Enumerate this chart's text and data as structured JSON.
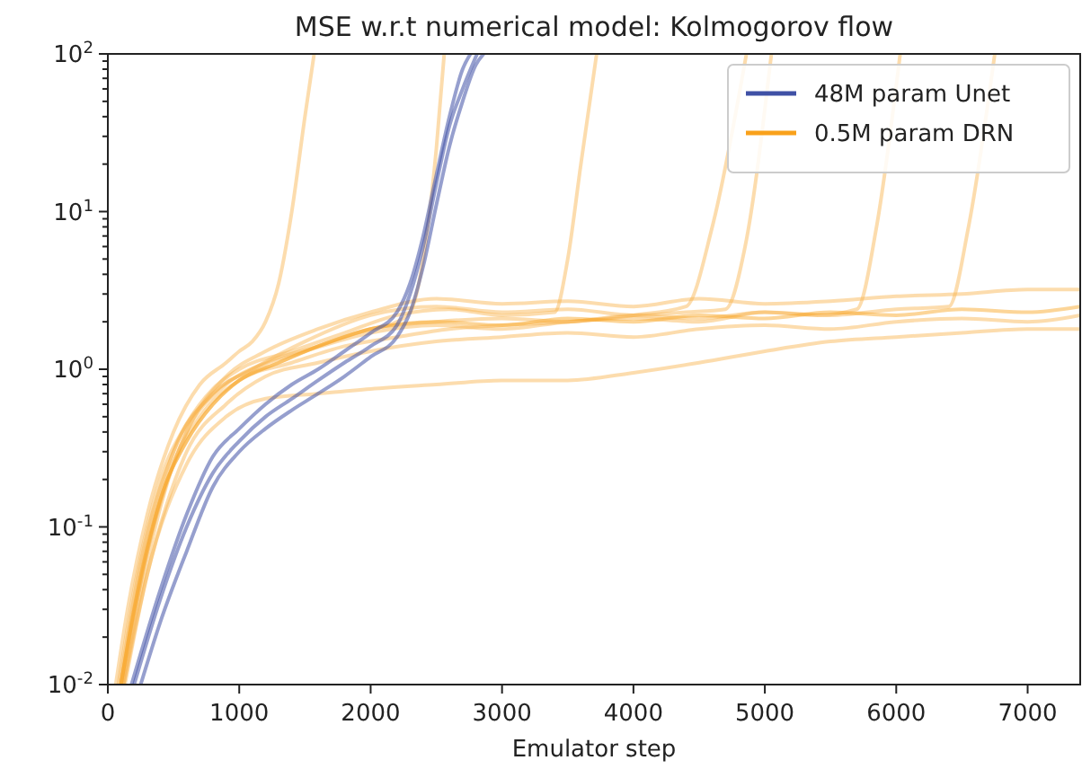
{
  "chart_data": {
    "type": "line",
    "title": "MSE w.r.t numerical model: Kolmogorov flow",
    "xlabel": "Emulator step",
    "log": "y",
    "legend": "top right",
    "grid": false,
    "marker": "none",
    "line_style": "solid",
    "xlim": [
      0,
      7400
    ],
    "xticks": [
      0,
      1000,
      2000,
      3000,
      4000,
      5000,
      6000,
      7000
    ],
    "ylim": [
      0.01,
      100
    ],
    "yticks": [
      {
        "value": 0.01,
        "label": "10$^{-2}$"
      },
      {
        "value": 0.02,
        "label": null
      },
      {
        "value": 0.03,
        "label": null
      },
      {
        "value": 0.04,
        "label": null
      },
      {
        "value": 0.05,
        "label": null
      },
      {
        "value": 0.06,
        "label": null
      },
      {
        "value": 0.07,
        "label": null
      },
      {
        "value": 0.08,
        "label": null
      },
      {
        "value": 0.09,
        "label": null
      },
      {
        "value": 0.1,
        "label": "10$^{-1}$"
      },
      {
        "value": 0.2,
        "label": null
      },
      {
        "value": 0.3,
        "label": null
      },
      {
        "value": 0.4,
        "label": null
      },
      {
        "value": 0.5,
        "label": null
      },
      {
        "value": 0.6,
        "label": null
      },
      {
        "value": 0.7,
        "label": null
      },
      {
        "value": 0.8,
        "label": null
      },
      {
        "value": 0.9,
        "label": null
      },
      {
        "value": 1,
        "label": "10$^{0}$"
      },
      {
        "value": 2,
        "label": null
      },
      {
        "value": 3,
        "label": null
      },
      {
        "value": 4,
        "label": null
      },
      {
        "value": 5,
        "label": null
      },
      {
        "value": 6,
        "label": null
      },
      {
        "value": 7,
        "label": null
      },
      {
        "value": 8,
        "label": null
      },
      {
        "value": 9,
        "label": null
      },
      {
        "value": 10,
        "label": "10$^{1}$"
      },
      {
        "value": 20,
        "label": null
      },
      {
        "value": 30,
        "label": null
      },
      {
        "value": 40,
        "label": null
      },
      {
        "value": 50,
        "label": null
      },
      {
        "value": 60,
        "label": null
      },
      {
        "value": 70,
        "label": null
      },
      {
        "value": 80,
        "label": null
      },
      {
        "value": 90,
        "label": null
      },
      {
        "value": 100,
        "label": "10$^{2}$"
      }
    ],
    "series": [
      {
        "color": "#f9b24a",
        "x": [
          60,
          150,
          300,
          500,
          700,
          900,
          1000,
          1100,
          1200,
          1300,
          1400,
          1500,
          1570
        ],
        "values": [
          0.01,
          0.03,
          0.12,
          0.4,
          0.8,
          1.1,
          1.3,
          1.5,
          2,
          3.5,
          10,
          40,
          100
        ]
      },
      {
        "color": "#f9b24a",
        "x": [
          100,
          200,
          400,
          600,
          800,
          1000,
          1300,
          1600,
          2000,
          2200,
          2300,
          2400,
          2500,
          2560
        ],
        "values": [
          0.01,
          0.03,
          0.15,
          0.35,
          0.6,
          0.85,
          1.1,
          1.4,
          1.8,
          2,
          2.3,
          5,
          25,
          100
        ]
      },
      {
        "color": "#f9b24a",
        "x": [
          80,
          200,
          400,
          600,
          800,
          1000,
          1400,
          1800,
          2200,
          2600,
          3000,
          3400,
          3500,
          3600,
          3720
        ],
        "values": [
          0.01,
          0.04,
          0.2,
          0.45,
          0.75,
          1,
          1.3,
          1.7,
          2.2,
          2.4,
          2.2,
          2.3,
          5,
          20,
          100
        ]
      },
      {
        "color": "#f9b24a",
        "x": [
          120,
          300,
          500,
          700,
          1000,
          1400,
          1800,
          2200,
          2600,
          3000,
          3500,
          4000,
          4400,
          4600,
          4860
        ],
        "values": [
          0.01,
          0.06,
          0.25,
          0.5,
          0.85,
          1.1,
          1.4,
          1.6,
          1.8,
          1.9,
          2,
          2.2,
          2.5,
          8,
          100
        ]
      },
      {
        "color": "#f9b24a",
        "x": [
          100,
          300,
          500,
          800,
          1100,
          1500,
          2000,
          2500,
          3000,
          3500,
          4000,
          4400,
          4700,
          4850,
          5050
        ],
        "values": [
          0.01,
          0.08,
          0.3,
          0.7,
          1,
          1.5,
          2.2,
          2.5,
          2.3,
          2.4,
          2.2,
          2.3,
          2.4,
          6,
          100
        ]
      },
      {
        "color": "#f9b24a",
        "x": [
          90,
          250,
          500,
          800,
          1100,
          1500,
          2000,
          2500,
          3000,
          3500,
          4000,
          4500,
          5000,
          5400,
          5700,
          5850,
          6030
        ],
        "values": [
          0.01,
          0.06,
          0.3,
          0.7,
          1,
          1.3,
          1.7,
          1.9,
          1.8,
          2,
          2.1,
          2,
          2.3,
          2.2,
          2.4,
          8,
          100
        ]
      },
      {
        "color": "#f9b24a",
        "x": [
          110,
          300,
          600,
          900,
          1200,
          1600,
          2000,
          2500,
          3000,
          3500,
          4000,
          4500,
          5000,
          5500,
          6000,
          6400,
          6550,
          6750
        ],
        "values": [
          0.01,
          0.07,
          0.4,
          0.8,
          1.1,
          1.4,
          1.8,
          2,
          2.1,
          2,
          2.2,
          2.1,
          2.3,
          2.2,
          2.4,
          2.5,
          8,
          100
        ]
      },
      {
        "color": "#f9b24a",
        "x": [
          130,
          300,
          600,
          900,
          1200,
          1600,
          2000,
          2500,
          3000,
          3500,
          4000,
          4500,
          5000,
          5500,
          6000,
          6500,
          7000,
          7400
        ],
        "values": [
          0.01,
          0.05,
          0.25,
          0.5,
          0.65,
          0.7,
          0.75,
          0.8,
          0.85,
          0.85,
          0.95,
          1.1,
          1.3,
          1.5,
          1.6,
          1.7,
          1.8,
          1.8
        ]
      },
      {
        "color": "#f9b24a",
        "x": [
          100,
          300,
          600,
          900,
          1200,
          1600,
          2000,
          2500,
          3000,
          3500,
          4000,
          4500,
          5000,
          5500,
          6000,
          6500,
          7000,
          7400
        ],
        "values": [
          0.01,
          0.07,
          0.4,
          0.9,
          1.3,
          1.8,
          2.3,
          2.8,
          2.6,
          2.7,
          2.5,
          2.8,
          2.6,
          2.7,
          2.9,
          3,
          3.2,
          3.2
        ]
      },
      {
        "color": "#f9b24a",
        "x": [
          120,
          300,
          600,
          900,
          1200,
          1600,
          2000,
          2500,
          3000,
          3500,
          4000,
          4500,
          5000,
          5500,
          6000,
          6500,
          7000,
          7400
        ],
        "values": [
          0.01,
          0.05,
          0.3,
          0.6,
          0.9,
          1.1,
          1.3,
          1.5,
          1.6,
          1.7,
          1.6,
          1.8,
          1.9,
          1.8,
          2,
          2.1,
          2,
          2.2
        ]
      },
      {
        "name": "0.5M param DRN",
        "color": "#f9a11b",
        "x": [
          100,
          200,
          400,
          600,
          800,
          1000,
          1300,
          1600,
          2000,
          2500,
          3000,
          3500,
          4000,
          4500,
          5000,
          5500,
          6000,
          6500,
          7000,
          7400
        ],
        "values": [
          0.01,
          0.03,
          0.15,
          0.35,
          0.6,
          0.85,
          1.1,
          1.4,
          1.8,
          2,
          1.9,
          2.1,
          2,
          2.2,
          2.1,
          2.3,
          2.2,
          2.4,
          2.3,
          2.5
        ]
      },
      {
        "color": "#3f51a5",
        "x": [
          180,
          400,
          600,
          800,
          1000,
          1200,
          1400,
          1600,
          1800,
          2000,
          2200,
          2300,
          2400,
          2500,
          2600,
          2700,
          2760
        ],
        "values": [
          0.01,
          0.04,
          0.12,
          0.28,
          0.42,
          0.6,
          0.8,
          1,
          1.3,
          1.7,
          2.3,
          3.5,
          7,
          17,
          40,
          80,
          100
        ]
      },
      {
        "color": "#3f51a5",
        "x": [
          250,
          400,
          600,
          800,
          1000,
          1200,
          1400,
          1600,
          1800,
          2000,
          2200,
          2300,
          2400,
          2500,
          2600,
          2700,
          2800,
          2860
        ],
        "values": [
          0.01,
          0.025,
          0.07,
          0.18,
          0.3,
          0.42,
          0.55,
          0.7,
          0.9,
          1.2,
          1.6,
          2.3,
          4.5,
          11,
          26,
          50,
          85,
          100
        ]
      },
      {
        "name": "48M param Unet",
        "color": "#3f51a5",
        "x": [
          200,
          400,
          600,
          800,
          1000,
          1200,
          1400,
          1600,
          1800,
          2000,
          2200,
          2300,
          2400,
          2500,
          2600,
          2700,
          2810
        ],
        "values": [
          0.01,
          0.035,
          0.1,
          0.22,
          0.35,
          0.5,
          0.65,
          0.85,
          1.1,
          1.4,
          1.9,
          3,
          6,
          15,
          35,
          60,
          100
        ]
      }
    ]
  }
}
